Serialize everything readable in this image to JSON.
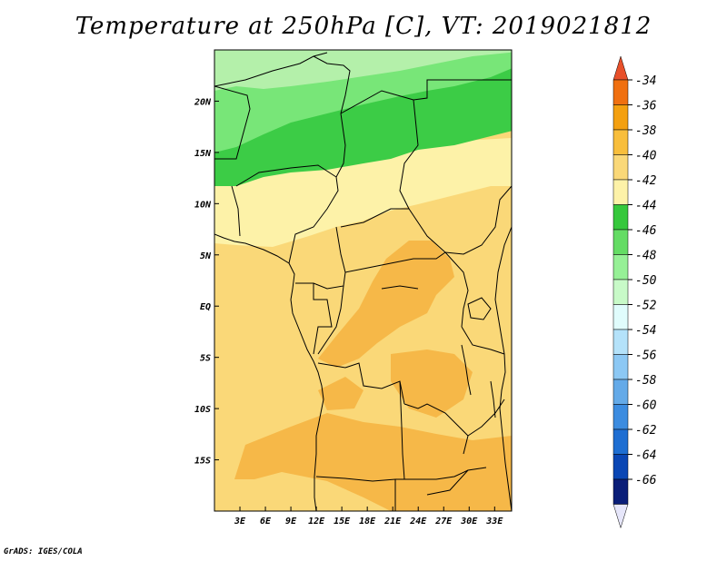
{
  "title": "Temperature at 250hPa [C], VT: 2019021812",
  "credit": "GrADS: IGES/COLA",
  "map": {
    "lon_range": [
      0,
      35
    ],
    "lat_range": [
      -20,
      25
    ],
    "x_ticks": [
      {
        "value": 3,
        "label": "3E"
      },
      {
        "value": 6,
        "label": "6E"
      },
      {
        "value": 9,
        "label": "9E"
      },
      {
        "value": 12,
        "label": "12E"
      },
      {
        "value": 15,
        "label": "15E"
      },
      {
        "value": 18,
        "label": "18E"
      },
      {
        "value": 21,
        "label": "21E"
      },
      {
        "value": 24,
        "label": "24E"
      },
      {
        "value": 27,
        "label": "27E"
      },
      {
        "value": 30,
        "label": "30E"
      },
      {
        "value": 33,
        "label": "33E"
      }
    ],
    "y_ticks": [
      {
        "value": 20,
        "label": "20N"
      },
      {
        "value": 15,
        "label": "15N"
      },
      {
        "value": 10,
        "label": "10N"
      },
      {
        "value": 5,
        "label": "5N"
      },
      {
        "value": 0,
        "label": "EQ"
      },
      {
        "value": -5,
        "label": "5S"
      },
      {
        "value": -10,
        "label": "10S"
      },
      {
        "value": -15,
        "label": "15S"
      }
    ]
  },
  "colorbar": {
    "labels": [
      "-34",
      "-36",
      "-38",
      "-40",
      "-42",
      "-44",
      "-46",
      "-48",
      "-50",
      "-52",
      "-54",
      "-56",
      "-58",
      "-60",
      "-62",
      "-64",
      "-66"
    ],
    "colors": {
      "top_arrow": "#e8502a",
      "boxes": [
        "#f07010",
        "#f4a010",
        "#f8be3c",
        "#fad878",
        "#fdf2a8",
        "#36c83c",
        "#64dc64",
        "#96f096",
        "#c8fac8",
        "#e0fcfc",
        "#b4e2fa",
        "#8cc8f4",
        "#64aae8",
        "#3c8ce0",
        "#1e6ed2",
        "#0a46b4",
        "#0a1e78"
      ],
      "bottom_arrow": "#e6e6fa"
    }
  },
  "field_colors": {
    "t_48_50": "#b4f0aa",
    "t_46_48": "#78e678",
    "t_44_46": "#3ccc46",
    "t_42_44": "#fdf2a8",
    "t_40_42": "#fad878",
    "t_38_40": "#f6b848"
  }
}
